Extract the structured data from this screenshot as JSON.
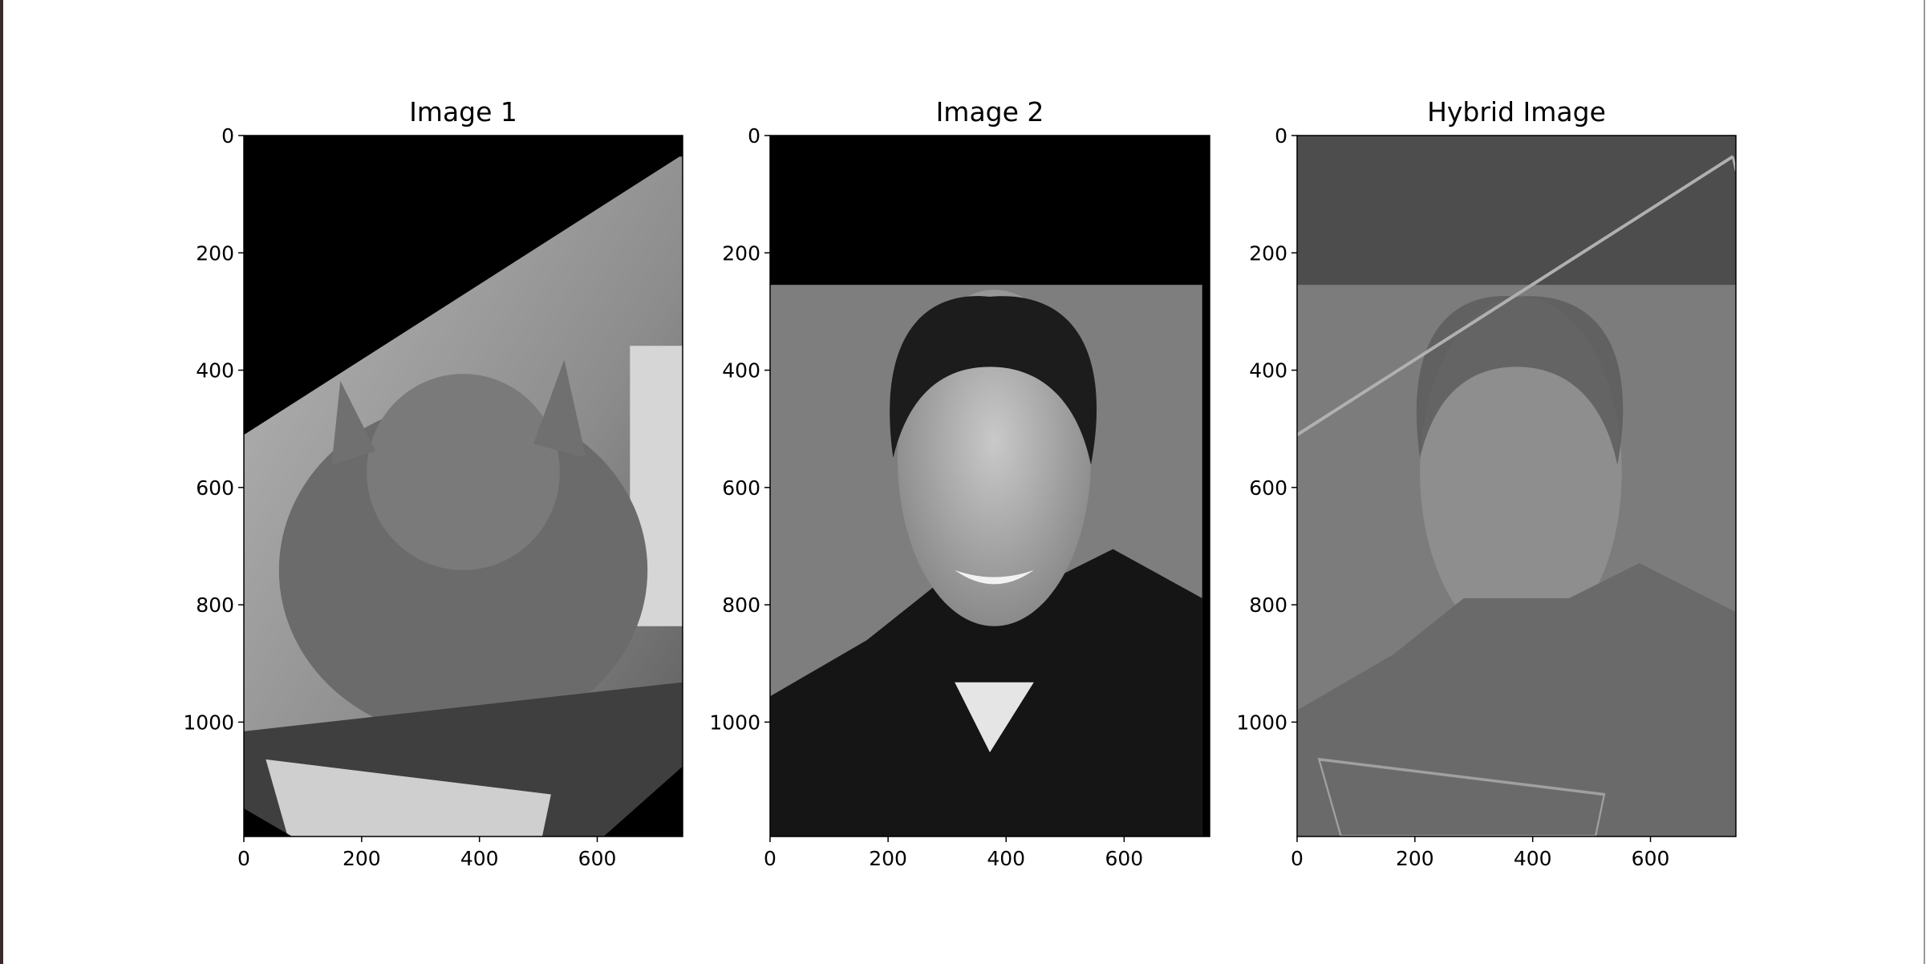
{
  "chart_data": [
    {
      "type": "image",
      "title": "Image 1",
      "xlim": [
        0,
        745
      ],
      "ylim": [
        1195,
        0
      ],
      "xticks": [
        0,
        200,
        400,
        600
      ],
      "yticks": [
        0,
        200,
        400,
        600,
        800,
        1000
      ]
    },
    {
      "type": "image",
      "title": "Image 2",
      "xlim": [
        0,
        745
      ],
      "ylim": [
        1195,
        0
      ],
      "xticks": [
        0,
        200,
        400,
        600
      ],
      "yticks": [
        0,
        200,
        400,
        600,
        800,
        1000
      ]
    },
    {
      "type": "image",
      "title": "Hybrid Image",
      "xlim": [
        0,
        745
      ],
      "ylim": [
        1195,
        0
      ],
      "xticks": [
        0,
        200,
        400,
        600
      ],
      "yticks": [
        0,
        200,
        400,
        600,
        800,
        1000
      ]
    }
  ]
}
